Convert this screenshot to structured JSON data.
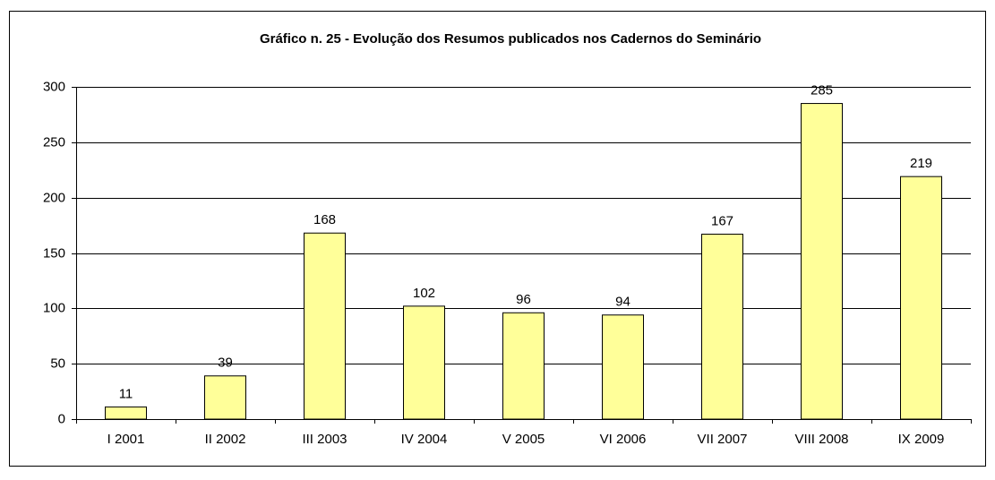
{
  "chart_data": {
    "type": "bar",
    "title": "Gráfico n. 25 - Evolução dos Resumos publicados nos Cadernos do Seminário",
    "categories": [
      "I 2001",
      "II 2002",
      "III 2003",
      "IV 2004",
      "V 2005",
      "VI 2006",
      "VII 2007",
      "VIII 2008",
      "IX 2009"
    ],
    "values": [
      11,
      39,
      168,
      102,
      96,
      94,
      167,
      285,
      219
    ],
    "color": "#ffff99",
    "ylim": [
      0,
      300
    ],
    "yticks": [
      0,
      50,
      100,
      150,
      200,
      250,
      300
    ],
    "grid": true
  }
}
